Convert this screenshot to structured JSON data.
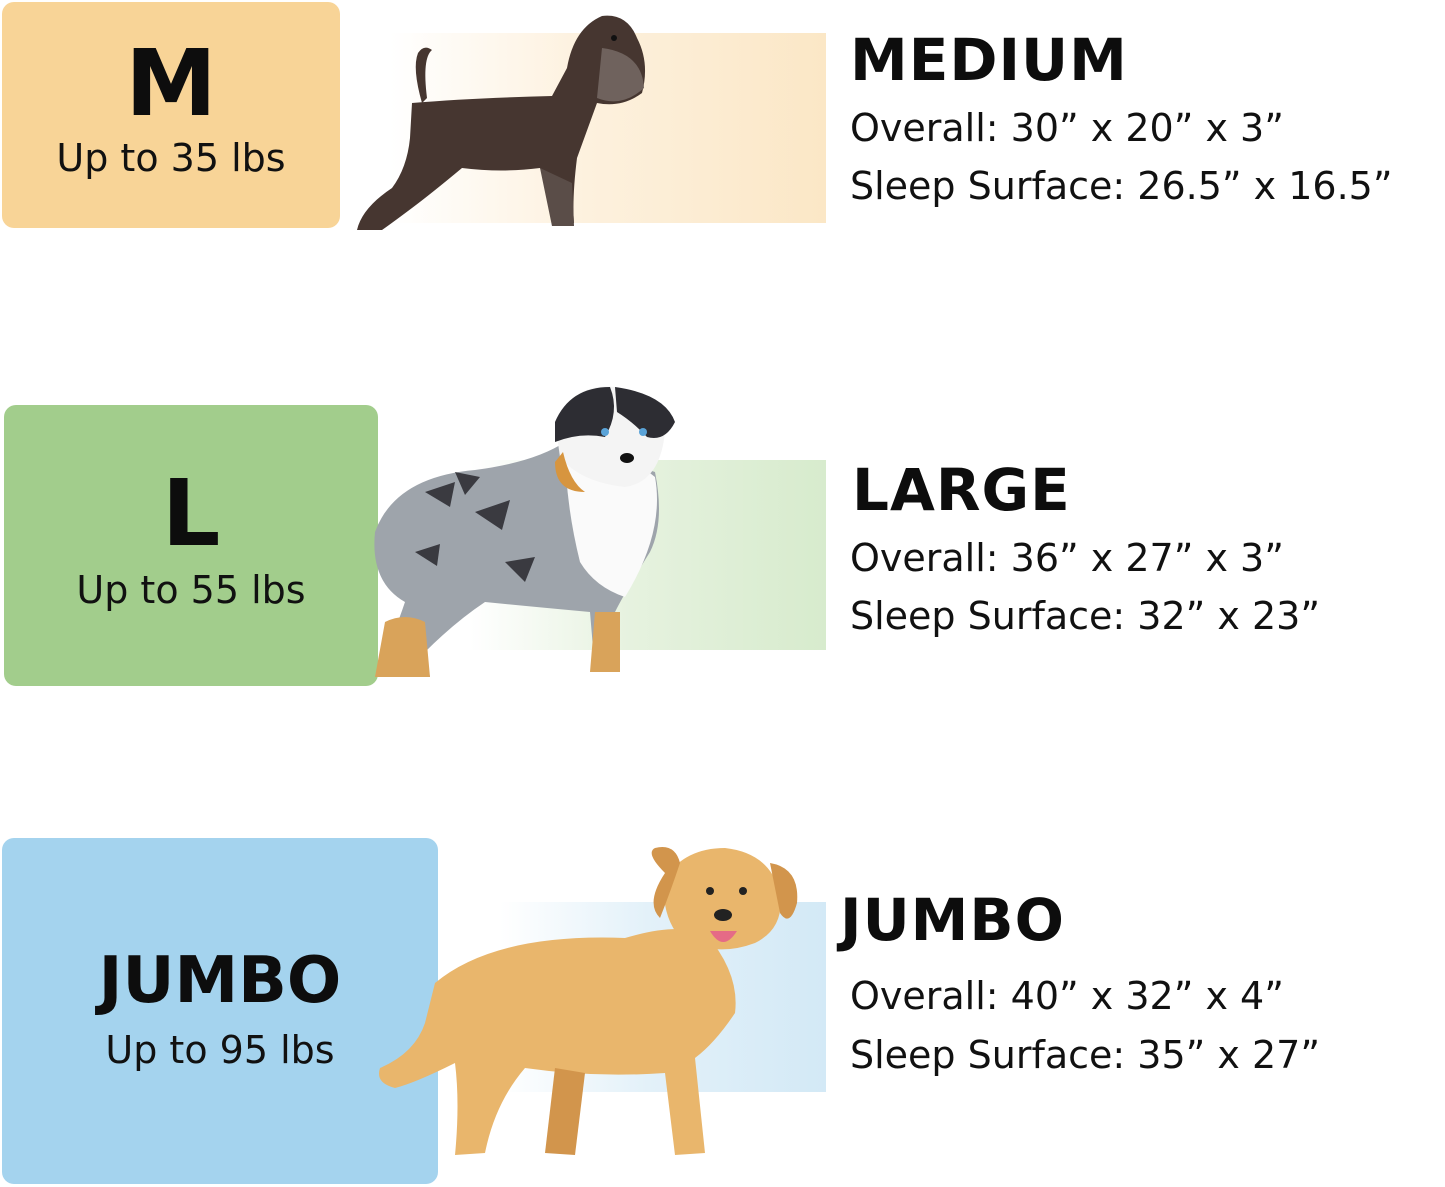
{
  "sizes": [
    {
      "code": "M",
      "weight": "Up to 35 lbs",
      "name": "MEDIUM",
      "overall": "Overall: 30” x 20” x 3”",
      "sleep_surface": "Sleep Surface: 26.5” x 16.5”",
      "color": "#F8D497",
      "bar_color": "#FBE7C6",
      "dog": "schnauzer-dog-illustration"
    },
    {
      "code": "L",
      "weight": "Up to 55 lbs",
      "name": "LARGE",
      "overall": "Overall: 36” x 27” x 3”",
      "sleep_surface": "Sleep Surface: 32” x 23”",
      "color": "#A2CD8C",
      "bar_color": "#D7EBCD",
      "dog": "australian-shepherd-dog-illustration"
    },
    {
      "code": "JUMBO",
      "weight": "Up to 95 lbs",
      "name": "JUMBO",
      "overall": "Overall: 40” x 32” x 4”",
      "sleep_surface": "Sleep Surface: 35” x 27”",
      "color": "#A4D3EE",
      "bar_color": "#D3E9F6",
      "dog": "golden-retriever-dog-illustration"
    }
  ]
}
